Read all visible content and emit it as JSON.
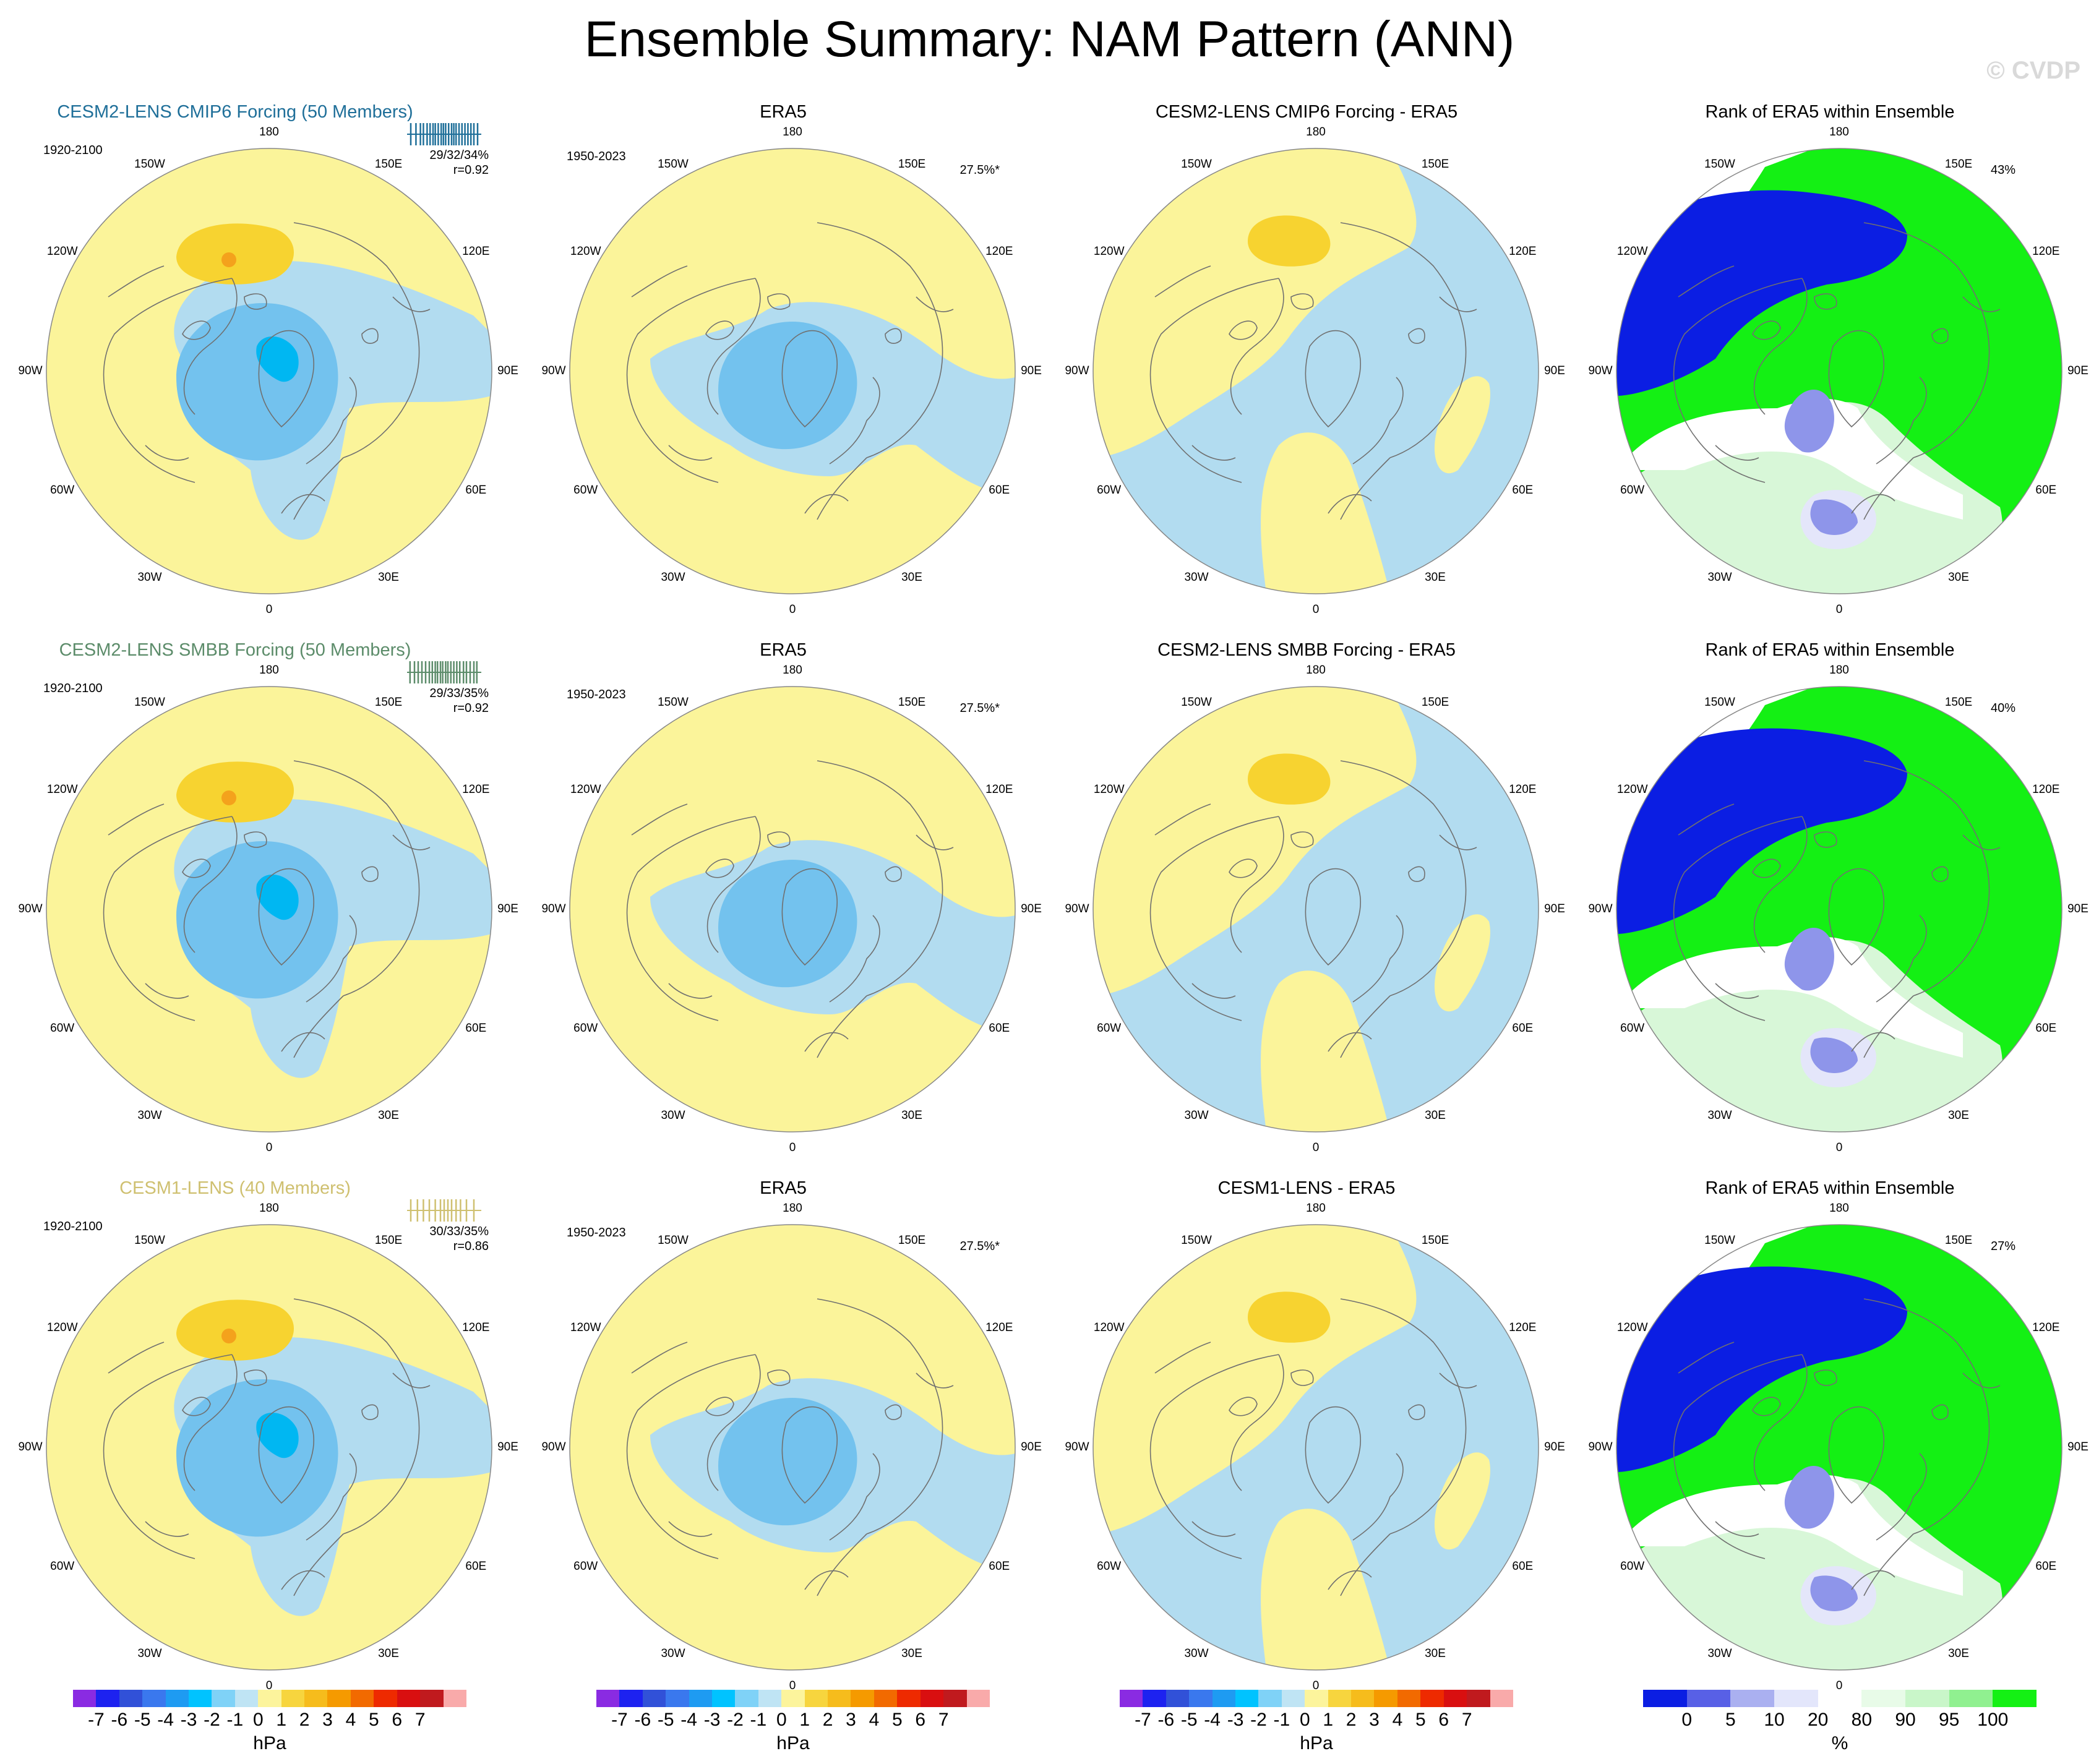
{
  "title": "Ensemble Summary: NAM Pattern (ANN)",
  "watermark": "© CVDP",
  "lon_labels": [
    "180",
    "150E",
    "120E",
    "90E",
    "60E",
    "30E",
    "0",
    "30W",
    "60W",
    "90W",
    "120W",
    "150W"
  ],
  "colors": {
    "pos1": "#fbf49a",
    "pos2": "#f7d330",
    "pos3": "#f4a21c",
    "neg1": "#b2dcf0",
    "neg2": "#73c2ee",
    "neg3": "#00b7f2",
    "rank_low": "#0b1ee3",
    "rank_mid": "#8e95ea",
    "rank_light": "#e4e6fa",
    "rank_white": "#ffffff",
    "rank_pale_green": "#d8f7d8",
    "rank_green": "#8ef08e",
    "rank_high": "#14f014"
  },
  "rows": [
    {
      "model": {
        "title": "CESM2-LENS CMIP6 Forcing (50 Members)",
        "title_color": "#1f6f99",
        "period": "1920-2100",
        "stats": "29/32/34%",
        "corr": "r=0.92",
        "ticks": [
          0.05,
          0.12,
          0.18,
          0.22,
          0.27,
          0.31,
          0.35,
          0.38,
          0.42,
          0.46,
          0.49,
          0.52,
          0.56,
          0.6,
          0.63,
          0.66,
          0.7,
          0.74,
          0.78,
          0.82,
          0.86,
          0.9,
          0.95
        ]
      },
      "obs": {
        "title": "ERA5",
        "period": "1950-2023",
        "pct": "27.5%*"
      },
      "diff": {
        "title": "CESM2-LENS CMIP6 Forcing - ERA5"
      },
      "rank": {
        "title": "Rank of ERA5 within Ensemble",
        "pct": "43%"
      }
    },
    {
      "model": {
        "title": "CESM2-LENS SMBB Forcing (50 Members)",
        "title_color": "#5c8c6a",
        "period": "1920-2100",
        "stats": "29/33/35%",
        "corr": "r=0.92",
        "ticks": [
          0.04,
          0.1,
          0.15,
          0.2,
          0.25,
          0.3,
          0.34,
          0.38,
          0.41,
          0.45,
          0.48,
          0.52,
          0.55,
          0.59,
          0.63,
          0.67,
          0.71,
          0.76,
          0.8,
          0.85,
          0.9,
          0.94
        ]
      },
      "obs": {
        "title": "ERA5",
        "period": "1950-2023",
        "pct": "27.5%*"
      },
      "diff": {
        "title": "CESM2-LENS SMBB Forcing - ERA5"
      },
      "rank": {
        "title": "Rank of ERA5 within Ensemble",
        "pct": "40%"
      }
    },
    {
      "model": {
        "title": "CESM1-LENS (40 Members)",
        "title_color": "#cfc070",
        "period": "1920-2100",
        "stats": "30/33/35%",
        "corr": "r=0.86",
        "ticks": [
          0.05,
          0.14,
          0.22,
          0.3,
          0.38,
          0.45,
          0.5,
          0.55,
          0.6,
          0.66,
          0.72,
          0.8,
          0.9
        ]
      },
      "obs": {
        "title": "ERA5",
        "period": "1950-2023",
        "pct": "27.5%*"
      },
      "diff": {
        "title": "CESM1-LENS - ERA5"
      },
      "rank": {
        "title": "Rank of ERA5 within Ensemble",
        "pct": "27%"
      }
    }
  ],
  "hpa_colorbar": {
    "colors": [
      "#8a2be2",
      "#1d22f0",
      "#3151d8",
      "#3a78ee",
      "#1e9bf2",
      "#00c3ff",
      "#7fd2f7",
      "#bfe4f4",
      "#fcf49c",
      "#f7d53e",
      "#f6bc1c",
      "#f59a00",
      "#f26a00",
      "#ee2a00",
      "#d90f10",
      "#c01a1e",
      "#f9aaaa"
    ],
    "labels": [
      "-7",
      "-6",
      "-5",
      "-4",
      "-3",
      "-2",
      "-1",
      "0",
      "1",
      "2",
      "3",
      "4",
      "5",
      "6",
      "7"
    ],
    "unit": "hPa"
  },
  "rank_colorbar": {
    "colors": [
      "#0b1ee3",
      "#5860e6",
      "#aab0f0",
      "#e3e6fb",
      "#ffffff",
      "#e8fbe8",
      "#c9f6c9",
      "#90f090",
      "#14f014"
    ],
    "labels": [
      "0",
      "5",
      "10",
      "20",
      "80",
      "90",
      "95",
      "100"
    ],
    "unit": "%"
  }
}
